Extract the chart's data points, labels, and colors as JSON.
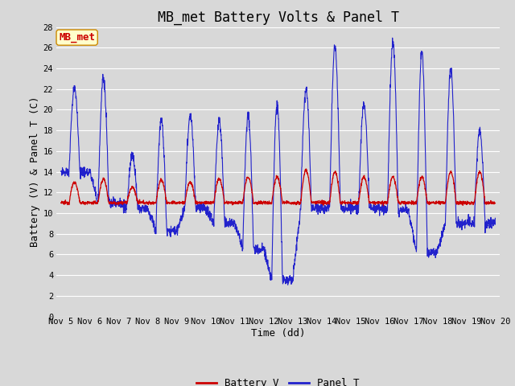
{
  "title": "MB_met Battery Volts & Panel T",
  "xlabel": "Time (dd)",
  "ylabel": "Battery (V) & Panel T (C)",
  "ylim": [
    0,
    28
  ],
  "yticks": [
    0,
    2,
    4,
    6,
    8,
    10,
    12,
    14,
    16,
    18,
    20,
    22,
    24,
    26,
    28
  ],
  "xlim": [
    4.85,
    20.15
  ],
  "xtick_positions": [
    5,
    6,
    7,
    8,
    9,
    10,
    11,
    12,
    13,
    14,
    15,
    16,
    17,
    18,
    19,
    20
  ],
  "xtick_labels": [
    "Nov 5",
    "Nov 6",
    "Nov 7",
    "Nov 8",
    "Nov 9",
    "Nov 10",
    "Nov 11",
    "Nov 12",
    "Nov 13",
    "Nov 14",
    "Nov 15",
    "Nov 16",
    "Nov 17",
    "Nov 18",
    "Nov 19",
    "Nov 20"
  ],
  "battery_color": "#cc0000",
  "panel_color": "#2222cc",
  "bg_color": "#d8d8d8",
  "plot_bg_color": "#d8d8d8",
  "grid_color": "#ffffff",
  "annotation_text": "MB_met",
  "annotation_color": "#cc0000",
  "annotation_bg": "#ffffcc",
  "annotation_border": "#cc8800",
  "legend_battery": "Battery V",
  "legend_panel": "Panel T",
  "title_fontsize": 12,
  "axis_fontsize": 9,
  "tick_fontsize": 7.5,
  "legend_fontsize": 9
}
